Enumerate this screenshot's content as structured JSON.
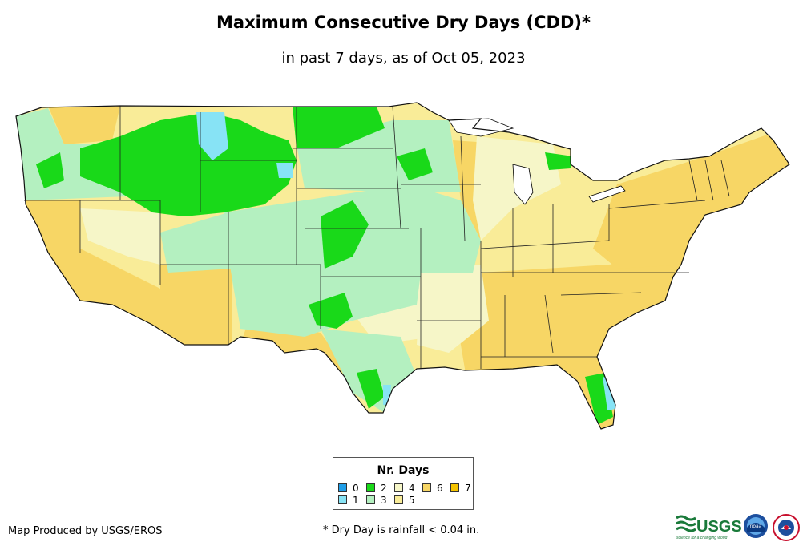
{
  "title": "Maximum Consecutive Dry Days (CDD)*",
  "subtitle": "in past 7 days, as of Oct 05, 2023",
  "legend": {
    "title": "Nr. Days",
    "items": [
      {
        "label": "0",
        "color": "#1f9ee8"
      },
      {
        "label": "1",
        "color": "#87e3f5"
      },
      {
        "label": "2",
        "color": "#19d919"
      },
      {
        "label": "3",
        "color": "#b4f0c0"
      },
      {
        "label": "4",
        "color": "#f6f6c8"
      },
      {
        "label": "5",
        "color": "#f9ec98"
      },
      {
        "label": "6",
        "color": "#f7d665"
      },
      {
        "label": "7",
        "color": "#f5c400"
      }
    ]
  },
  "footer": {
    "credit": "Map Produced by USGS/EROS",
    "note": "* Dry Day is rainfall < 0.04 in."
  },
  "logos": {
    "usgs_text": "USGS",
    "usgs_tagline": "science for a changing world",
    "noaa_text": "noaa"
  }
}
